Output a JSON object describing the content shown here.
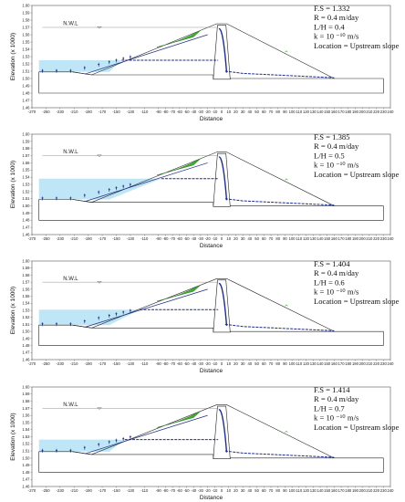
{
  "chart_data": [
    {
      "type": "scatter",
      "xlabel": "Distance",
      "ylabel": "Elevation (x 1000)",
      "xlim": [
        -270,
        240
      ],
      "ylim": [
        1.46,
        1.6
      ],
      "x_ticks": [
        "-270",
        "-250",
        "-230",
        "-210",
        "-190",
        "-170",
        "-150",
        "-130",
        "-110",
        "-90",
        "-80",
        "-70",
        "-60",
        "-50",
        "-40",
        "-30",
        "-20",
        "-10",
        "0",
        "10",
        "20",
        "30",
        "40",
        "50",
        "60",
        "70",
        "80",
        "90",
        "100",
        "110",
        "120",
        "130",
        "140",
        "150",
        "160",
        "170",
        "180",
        "190",
        "200",
        "210",
        "220",
        "230",
        "240"
      ],
      "y_ticks": [
        "1.46",
        "1.47",
        "1.48",
        "1.49",
        "1.50",
        "1.51",
        "1.52",
        "1.53",
        "1.54",
        "1.55",
        "1.56",
        "1.57",
        "1.58",
        "1.59",
        "1.60"
      ],
      "annotation": "N.W.L",
      "info": [
        "F.S = 1.332",
        "R = 0.4 m/day",
        "L/H = 0.4",
        "k = 10 ⁻¹⁰ m/s",
        "Location = Upstream slope"
      ],
      "phreatic_level": 1.525
    },
    {
      "type": "scatter",
      "xlabel": "Distance",
      "ylabel": "Elevation (x 1000)",
      "xlim": [
        -270,
        240
      ],
      "ylim": [
        1.46,
        1.6
      ],
      "x_ticks": [
        "-270",
        "-250",
        "-230",
        "-210",
        "-190",
        "-170",
        "-150",
        "-130",
        "-110",
        "-90",
        "-80",
        "-70",
        "-60",
        "-50",
        "-40",
        "-30",
        "-20",
        "-10",
        "0",
        "10",
        "20",
        "30",
        "40",
        "50",
        "60",
        "70",
        "80",
        "90",
        "100",
        "110",
        "120",
        "130",
        "140",
        "150",
        "160",
        "170",
        "180",
        "190",
        "200",
        "210",
        "220",
        "230",
        "240"
      ],
      "y_ticks": [
        "1.46",
        "1.47",
        "1.48",
        "1.49",
        "1.50",
        "1.51",
        "1.52",
        "1.53",
        "1.54",
        "1.55",
        "1.56",
        "1.57",
        "1.58",
        "1.59",
        "1.60"
      ],
      "annotation": "N.W.L",
      "info": [
        "F.S = 1.385",
        "R = 0.4 m/day",
        "L/H = 0.5",
        "k = 10 ⁻¹⁰ m/s",
        "Location = Upstream slope"
      ],
      "phreatic_level": 1.538
    },
    {
      "type": "scatter",
      "xlabel": "Distance",
      "ylabel": "Elevation (x 1000)",
      "xlim": [
        -270,
        240
      ],
      "ylim": [
        1.46,
        1.6
      ],
      "x_ticks": [
        "-270",
        "-250",
        "-230",
        "-210",
        "-190",
        "-170",
        "-150",
        "-130",
        "-110",
        "-90",
        "-80",
        "-70",
        "-60",
        "-50",
        "-40",
        "-30",
        "-20",
        "-10",
        "0",
        "10",
        "20",
        "30",
        "40",
        "50",
        "60",
        "70",
        "80",
        "90",
        "100",
        "110",
        "120",
        "130",
        "140",
        "150",
        "160",
        "170",
        "180",
        "190",
        "200",
        "210",
        "220",
        "230",
        "240"
      ],
      "y_ticks": [
        "1.46",
        "1.47",
        "1.48",
        "1.49",
        "1.50",
        "1.51",
        "1.52",
        "1.53",
        "1.54",
        "1.55",
        "1.56",
        "1.57",
        "1.58",
        "1.59",
        "1.60"
      ],
      "annotation": "N.W.L",
      "info": [
        "F.S = 1.404",
        "R = 0.4 m/day",
        "L/H = 0.6",
        "k = 10 ⁻¹⁰ m/s",
        "Location = Upstream slope"
      ],
      "phreatic_level": 1.531
    },
    {
      "type": "scatter",
      "xlabel": "Distance",
      "ylabel": "Elevation (x 1000)",
      "xlim": [
        -270,
        240
      ],
      "ylim": [
        1.46,
        1.6
      ],
      "x_ticks": [
        "-270",
        "-250",
        "-230",
        "-210",
        "-190",
        "-170",
        "-150",
        "-130",
        "-110",
        "-90",
        "-80",
        "-70",
        "-60",
        "-50",
        "-40",
        "-30",
        "-20",
        "-10",
        "0",
        "10",
        "20",
        "30",
        "40",
        "50",
        "60",
        "70",
        "80",
        "90",
        "100",
        "110",
        "120",
        "130",
        "140",
        "150",
        "160",
        "170",
        "180",
        "190",
        "200",
        "210",
        "220",
        "230",
        "240"
      ],
      "y_ticks": [
        "1.46",
        "1.47",
        "1.48",
        "1.49",
        "1.50",
        "1.51",
        "1.52",
        "1.53",
        "1.54",
        "1.55",
        "1.56",
        "1.57",
        "1.58",
        "1.59",
        "1.60"
      ],
      "annotation": "N.W.L",
      "info": [
        "F.S = 1.414",
        "R = 0.4 m/day",
        "L/H = 0.7",
        "k = 10 ⁻¹⁰ m/s",
        "Location = Upstream slope"
      ],
      "phreatic_level": 1.526
    }
  ],
  "colors": {
    "reservoir": "#bfe6f6",
    "slip_zone": "#3fae2f",
    "core": "#1f2d86",
    "outline": "#222222"
  }
}
